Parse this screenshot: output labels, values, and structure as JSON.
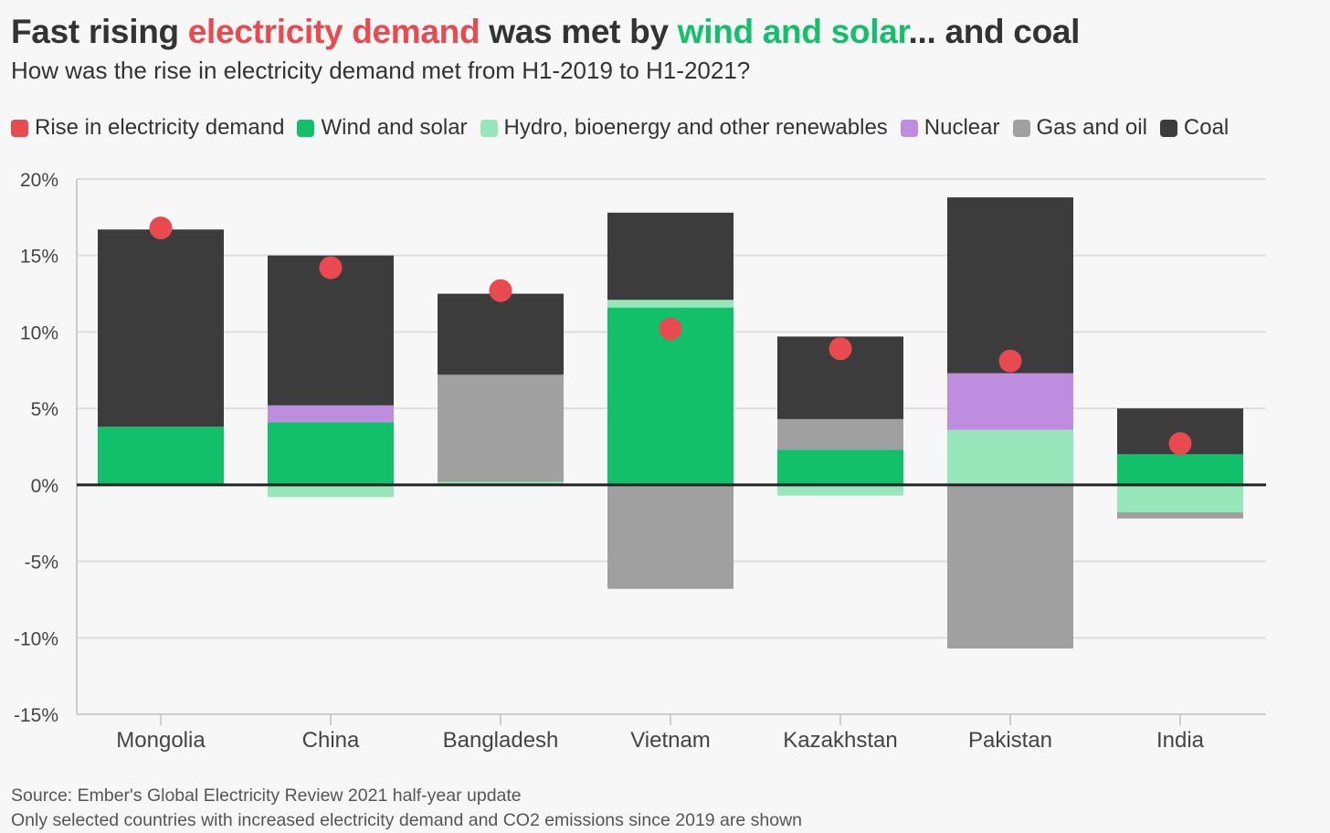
{
  "header": {
    "title_part1": "Fast rising ",
    "title_part2": "electricity demand",
    "title_part3": " was met by ",
    "title_part4": "wind and solar",
    "title_part5": "... and coal",
    "subtitle": "How was the rise in electricity demand met from H1-2019 to H1-2021?"
  },
  "colors": {
    "demand": "#e84a50",
    "wind_solar": "#12c06a",
    "hydro": "#98e7bb",
    "nuclear": "#be8ddf",
    "gas_oil": "#a0a0a0",
    "coal": "#3c3c3c",
    "grid": "#dddddd",
    "zero_line": "#222222"
  },
  "legend": [
    {
      "label": "Rise in electricity demand",
      "color": "#e84a50"
    },
    {
      "label": "Wind and solar",
      "color": "#12c06a"
    },
    {
      "label": "Hydro, bioenergy and other renewables",
      "color": "#98e7bb"
    },
    {
      "label": "Nuclear",
      "color": "#be8ddf"
    },
    {
      "label": "Gas and oil",
      "color": "#a0a0a0"
    },
    {
      "label": "Coal",
      "color": "#3c3c3c"
    }
  ],
  "footer": {
    "source": "Source: Ember's Global Electricity Review 2021 half-year update",
    "note": "Only selected countries with increased electricity demand and CO2 emissions since 2019 are shown"
  },
  "chart_data": {
    "type": "bar",
    "stacked": true,
    "categories": [
      "Mongolia",
      "China",
      "Bangladesh",
      "Vietnam",
      "Kazakhstan",
      "Pakistan",
      "India"
    ],
    "y_ticks": [
      "20%",
      "15%",
      "10%",
      "5%",
      "0%",
      "-5%",
      "-10%",
      "-15%"
    ],
    "ylim": [
      -15,
      20
    ],
    "grid": true,
    "series": [
      {
        "name": "Wind and solar",
        "key": "wind_solar",
        "values": [
          3.8,
          4.1,
          0.1,
          11.6,
          2.3,
          0,
          2.0
        ]
      },
      {
        "name": "Hydro, bioenergy and other renewables",
        "key": "hydro",
        "values": [
          0,
          -0.8,
          0.1,
          0.5,
          -0.7,
          3.6,
          -1.8
        ]
      },
      {
        "name": "Nuclear",
        "key": "nuclear",
        "values": [
          0,
          1.1,
          0,
          0,
          0,
          3.7,
          0
        ]
      },
      {
        "name": "Gas and oil",
        "key": "gas_oil",
        "values": [
          0,
          0,
          7.0,
          -6.8,
          2.0,
          -10.7,
          -0.4
        ]
      },
      {
        "name": "Coal",
        "key": "coal",
        "values": [
          12.9,
          9.8,
          5.3,
          5.7,
          5.4,
          11.5,
          3.0
        ]
      }
    ],
    "demand": {
      "name": "Rise in electricity demand",
      "values": [
        16.8,
        14.2,
        12.7,
        10.2,
        8.9,
        8.1,
        2.7
      ]
    }
  }
}
